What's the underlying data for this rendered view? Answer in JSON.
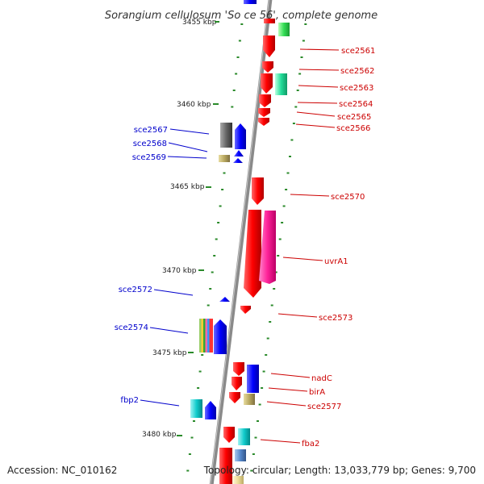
{
  "title": "Sorangium cellulosum 'So ce 56', complete genome",
  "footer": {
    "accession": "Accession: NC_010162",
    "topology": "Topology: circular; Length: 13,033,779 bp; Genes: 9,700"
  },
  "scale_labels": [
    "3455 kbp",
    "3460 kbp",
    "3465 kbp",
    "3470 kbp",
    "3475 kbp",
    "3480 kbp"
  ],
  "right_labels": [
    "sce2561",
    "sce2562",
    "sce2563",
    "sce2564",
    "sce2565",
    "sce2566",
    "sce2570",
    "uvrA1",
    "sce2573",
    "nadC",
    "birA",
    "sce2577",
    "fba2"
  ],
  "left_labels": [
    "sce2567",
    "sce2568",
    "sce2569",
    "sce2572",
    "sce2574",
    "fbp2"
  ],
  "colors": {
    "backbone": "#8a8a8a",
    "tick": "#2a8a2a",
    "forward_label": "#cc0000",
    "reverse_label": "#0000cc",
    "forward_gene": "#ff0000",
    "reverse_gene": "#0000ff"
  }
}
